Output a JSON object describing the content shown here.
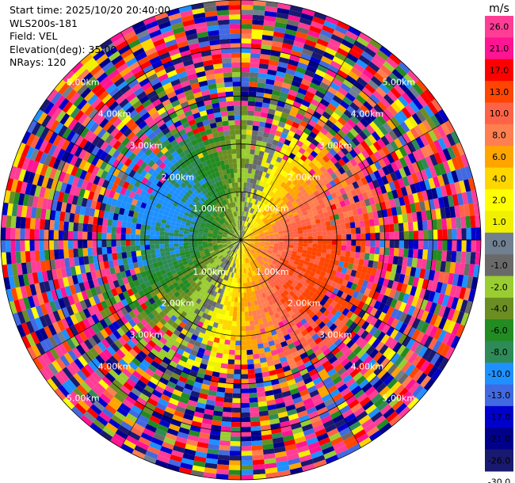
{
  "header": {
    "start_time": "Start time: 2025/10/20 20:40:00",
    "instrument": "WLS200s-181",
    "field": "Field: VEL",
    "elevation": "Elevation(deg): 35.00",
    "nrays": "NRays: 120"
  },
  "colorbar": {
    "unit": "m/s",
    "bins": [
      {
        "label": "26.0",
        "color": "#ff3d96"
      },
      {
        "label": "21.0",
        "color": "#ff1493"
      },
      {
        "label": "17.0",
        "color": "#ff0000"
      },
      {
        "label": "13.0",
        "color": "#ff4500"
      },
      {
        "label": "10.0",
        "color": "#ff6347"
      },
      {
        "label": "8.0",
        "color": "#ff7f50"
      },
      {
        "label": "6.0",
        "color": "#ffa500"
      },
      {
        "label": "4.0",
        "color": "#ffd700"
      },
      {
        "label": "2.0",
        "color": "#ffff00"
      },
      {
        "label": "1.0",
        "color": "#f0f000"
      },
      {
        "label": "0.0",
        "color": "#708090"
      },
      {
        "label": "-1.0",
        "color": "#696969"
      },
      {
        "label": "-2.0",
        "color": "#9acd32"
      },
      {
        "label": "-4.0",
        "color": "#6b8e23"
      },
      {
        "label": "-6.0",
        "color": "#228b22"
      },
      {
        "label": "-8.0",
        "color": "#2e8b57"
      },
      {
        "label": "-10.0",
        "color": "#1e90ff"
      },
      {
        "label": "-13.0",
        "color": "#4169e1"
      },
      {
        "label": "-17.0",
        "color": "#0000cd"
      },
      {
        "label": "-21.0",
        "color": "#00008b"
      },
      {
        "label": "-26.0",
        "color": "#191970"
      },
      {
        "label": "-30.0",
        "color": null
      }
    ]
  },
  "chart_data": {
    "type": "heatmap",
    "projection": "polar-ppi",
    "field": "VEL",
    "units": "m/s",
    "nrays": 120,
    "elevation_deg": 35.0,
    "max_range_km": 5.0,
    "range_gate_km": 0.1,
    "velocity_pattern": {
      "description": "radial velocity dipole: negative (toward) to the west/northwest, positive (away) to the east/southeast, noise beyond ~3 km",
      "peak_positive_azimuth_deg": 110,
      "peak_amplitude_ms": 11,
      "clean_range_km": 3.0
    },
    "range_ring_labels": [
      "1.00km",
      "2.00km",
      "3.00km",
      "4.00km",
      "5.00km"
    ],
    "range_rings_km": [
      1,
      2,
      3,
      4,
      5
    ]
  }
}
